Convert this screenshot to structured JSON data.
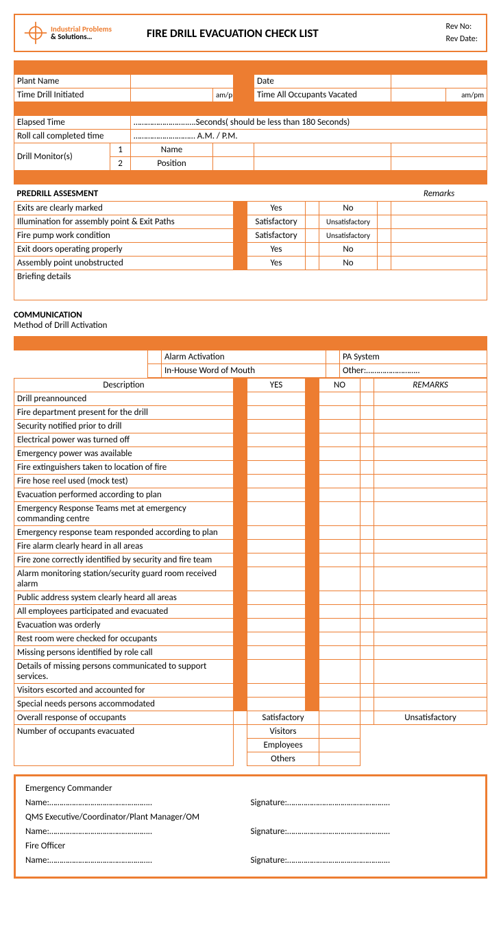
{
  "header": {
    "logo_l1": "Industrial Problems",
    "logo_l2": "& Solutions…",
    "title": "FIRE DRILL EVACUATION CHECK LIST",
    "rev_no_label": "Rev No:",
    "rev_date_label": "Rev Date:"
  },
  "info": {
    "plant_name_label": "Plant Name",
    "date_label": "Date",
    "time_init_label": "Time Drill Initiated",
    "ampm": "am/pm",
    "time_vac_label": "Time All Occupants Vacated",
    "elapsed_label": "Elapsed Time",
    "elapsed_text": "……………………..….Seconds( should be less than 180 Seconds)",
    "rollcall_label": "Roll call completed time",
    "rollcall_text": "………………………… A.M. / P.M.",
    "monitor_label": "Drill Monitor(s)",
    "n1": "1",
    "n2": "2",
    "name": "Name",
    "position": "Position"
  },
  "predrill": {
    "heading": "PREDRILL ASSESMENT",
    "remarks": "Remarks",
    "rows": [
      {
        "desc": "Exits are clearly marked",
        "a": "Yes",
        "b": "No"
      },
      {
        "desc": "Illumination for assembly point & Exit Paths",
        "a": "Satisfactory",
        "b": "Unsatisfactory"
      },
      {
        "desc": "Fire pump work condition",
        "a": "Satisfactory",
        "b": "Unsatisfactory"
      },
      {
        "desc": "Exit doors operating properly",
        "a": "Yes",
        "b": "No"
      },
      {
        "desc": "Assembly point unobstructed",
        "a": "Yes",
        "b": "No"
      }
    ],
    "briefing": "Briefing details"
  },
  "comm": {
    "heading": "COMMUNICATION",
    "subheading": "Method of Drill Activation",
    "act": {
      "alarm": "Alarm Activation",
      "pa": "PA System",
      "inhouse": "In-House Word of Mouth",
      "other": "Other:…………………….."
    },
    "hdr": {
      "desc": "Description",
      "yes": "YES",
      "no": "NO",
      "remarks": "REMARKS"
    },
    "rows": [
      "Drill preannounced",
      "Fire department present for the drill",
      "Security notified prior to drill",
      "Electrical power was turned off",
      "Emergency power was available",
      "Fire extinguishers taken to location of fire",
      "Fire hose reel used (mock test)",
      "Evacuation performed according to plan",
      "Emergency Response Teams met at emergency commanding centre",
      "Emergency response team responded according to plan",
      "Fire alarm clearly heard in all areas",
      "Fire zone correctly identified by security and fire team",
      "Alarm monitoring station/security guard room received alarm",
      "Public address system clearly heard all areas",
      "All employees participated and evacuated",
      "Evacuation was orderly",
      "Rest room were checked for occupants",
      "Missing persons identified by role call",
      "Details of missing persons communicated to support services.",
      "Visitors escorted and accounted for",
      "Special needs persons accommodated"
    ],
    "overall": {
      "label": "Overall response of occupants",
      "sat": "Satisfactory",
      "unsat": "Unsatisfactory"
    },
    "evac": {
      "label": "Number of occupants evacuated",
      "v": "Visitors",
      "e": "Employees",
      "o": "Others"
    }
  },
  "sign": {
    "ec": "Emergency Commander",
    "qms": "QMS Executive/Coordinator/Plant Manager/OM",
    "fo": "Fire Officer",
    "name": "Name:",
    "sig": "Signature:"
  },
  "style": {
    "orange": "#ed7d31",
    "font": "Calibri"
  }
}
